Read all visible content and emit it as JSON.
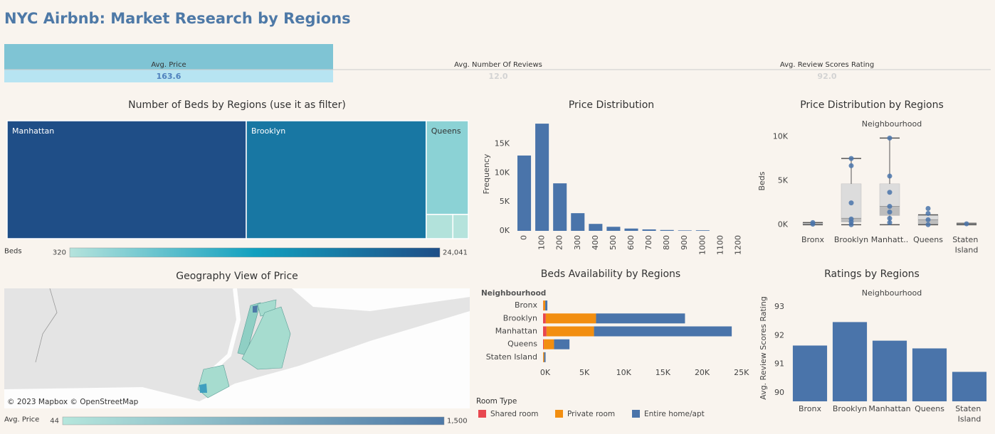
{
  "title": "NYC Airbnb: Market Research by Regions",
  "kpis": [
    {
      "label": "Avg. Price",
      "value": "163.6"
    },
    {
      "label": "Avg. Number Of Reviews",
      "value": "12.0"
    },
    {
      "label": "Avg. Review Scores Rating",
      "value": "92.0"
    }
  ],
  "chart_data": [
    {
      "type": "treemap",
      "title": "Number of Beds by Regions (use it as filter)",
      "categories": [
        "Manhattan",
        "Brooklyn",
        "Queens",
        null,
        null
      ],
      "values": [
        24041,
        18085,
        3367,
        550,
        320
      ],
      "colorscale": {
        "title": "Beds",
        "colors": [
          "#b5e3dc",
          "#12a0bf",
          "#1f4e87"
        ],
        "ticks": [
          320,
          {
            "value": 24041,
            "label": "24,041"
          }
        ]
      }
    },
    {
      "type": "bar",
      "title": "Price Distribution",
      "y_label": "Frequency",
      "categories": [
        "0",
        "100",
        "200",
        "300",
        "400",
        "500",
        "600",
        "700",
        "800",
        "900",
        "1000",
        "1100",
        "1200"
      ],
      "values": [
        13000,
        18500,
        8200,
        3050,
        1200,
        700,
        400,
        250,
        150,
        80,
        100,
        0,
        0
      ],
      "color": "#4a74aa",
      "ylim": [
        0,
        19000
      ],
      "yticks": [
        {
          "value": 0,
          "label": "0K"
        },
        {
          "value": 5000,
          "label": "5K"
        },
        {
          "value": 10000,
          "label": "10K"
        },
        {
          "value": 15000,
          "label": "15K"
        }
      ]
    },
    {
      "type": "box",
      "title": "Price Distribution by Regions",
      "subtitle": "Neighbourhood",
      "y_label": "Beds",
      "categories": [
        "Bronx",
        "Brooklyn",
        "Manhatt..",
        "Queens",
        "Staten Island"
      ],
      "color": "#4a74aa",
      "boxes": [
        {
          "min": 0,
          "q1": 0,
          "median": 80,
          "q3": 240,
          "max": 240,
          "points": [
            240,
            60
          ]
        },
        {
          "min": 0,
          "q1": 300,
          "median": 720,
          "q3": 4640,
          "max": 7520,
          "points": [
            7520,
            6700,
            2480,
            640,
            320,
            0
          ]
        },
        {
          "min": 0,
          "q1": 1040,
          "median": 2080,
          "q3": 4640,
          "max": 9840,
          "points": [
            9840,
            5520,
            3680,
            2080,
            1440,
            720,
            240
          ]
        },
        {
          "min": 0,
          "q1": 0,
          "median": 560,
          "q3": 1100,
          "max": 1120,
          "points": [
            1840,
            1280,
            560,
            0
          ]
        },
        {
          "min": 0,
          "q1": 0,
          "median": 100,
          "q3": 160,
          "max": 160,
          "points": [
            100
          ]
        }
      ],
      "ylim": [
        -700,
        11000
      ],
      "yticks": [
        {
          "value": 0,
          "label": "0K"
        },
        {
          "value": 5000,
          "label": "5K"
        },
        {
          "value": 10000,
          "label": "10K"
        }
      ]
    },
    {
      "type": "map",
      "title": "Geography View of Price",
      "attribution": "© 2023 Mapbox © OpenStreetMap",
      "colorscale": {
        "title": "Avg. Price",
        "colors": [
          "#b5e6dc",
          "#4e79a7"
        ],
        "ticks": [
          44,
          {
            "value": 1500,
            "label": "1,500"
          }
        ]
      }
    },
    {
      "type": "hbar",
      "title": "Beds Availability by Regions",
      "category_label": "Neighbourhood",
      "categories": [
        "Bronx",
        "Brooklyn",
        "Manhattan",
        "Queens",
        "Staten Island"
      ],
      "series": [
        {
          "name": "Shared room",
          "color": "#e8474f",
          "values": [
            30,
            350,
            440,
            100,
            10
          ]
        },
        {
          "name": "Private room",
          "color": "#f28e10",
          "values": [
            250,
            6400,
            6050,
            1300,
            130
          ]
        },
        {
          "name": "Entire home/apt",
          "color": "#4a74aa",
          "values": [
            270,
            11335,
            17551,
            1967,
            180
          ]
        }
      ],
      "xlim": [
        0,
        25300
      ],
      "xticks": [
        {
          "value": 0,
          "label": "0K"
        },
        {
          "value": 5000,
          "label": "5K"
        },
        {
          "value": 10000,
          "label": "10K"
        },
        {
          "value": 15000,
          "label": "15K"
        },
        {
          "value": 20000,
          "label": "20K"
        },
        {
          "value": 25000,
          "label": "25K"
        }
      ],
      "legend_title": "Room Type"
    },
    {
      "type": "bar",
      "title": "Ratings by Regions",
      "subtitle": "Neighbourhood",
      "y_label": "Avg. Review Scores Rating",
      "categories": [
        "Bronx",
        "Brooklyn",
        "Manhattan",
        "Queens",
        "Staten Island"
      ],
      "values": [
        91.65,
        92.47,
        91.82,
        91.55,
        90.73
      ],
      "color": "#4a74aa",
      "ylim": [
        89.7,
        93.3
      ],
      "yticks": [
        90,
        91,
        92,
        93
      ]
    }
  ]
}
